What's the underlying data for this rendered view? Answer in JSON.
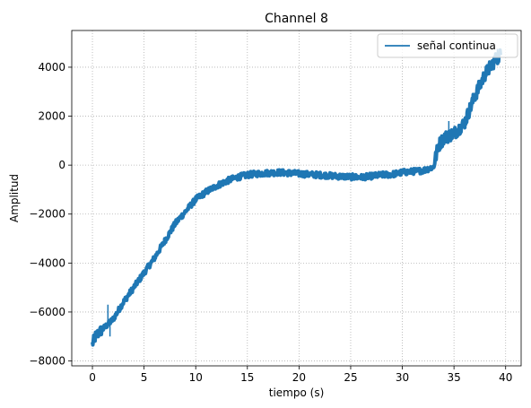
{
  "chart_data": {
    "type": "line",
    "title": "Channel 8",
    "xlabel": "tiempo (s)",
    "ylabel": "Amplitud",
    "xlim": [
      -2,
      41.5
    ],
    "ylim": [
      -8200,
      5500
    ],
    "xticks": [
      0,
      5,
      10,
      15,
      20,
      25,
      30,
      35,
      40
    ],
    "yticks": [
      -8000,
      -6000,
      -4000,
      -2000,
      0,
      2000,
      4000
    ],
    "xtick_labels": [
      "0",
      "5",
      "10",
      "15",
      "20",
      "25",
      "30",
      "35",
      "40"
    ],
    "ytick_labels": [
      "−8000",
      "−6000",
      "−4000",
      "−2000",
      "0",
      "2000",
      "4000"
    ],
    "grid": true,
    "legend_position": "top-right",
    "colors": {
      "series": "#1f77b4"
    },
    "series": [
      {
        "name": "señal continua",
        "x": [
          0,
          0.3,
          0.6,
          1,
          1.5,
          2,
          3,
          4,
          5,
          6,
          7,
          8,
          9,
          10,
          11,
          12,
          13,
          14,
          15,
          16,
          17,
          18,
          19,
          20,
          21,
          22,
          23,
          24,
          25,
          26,
          27,
          28,
          29,
          30,
          31,
          32,
          33,
          33.5,
          34,
          35,
          36,
          37,
          38,
          39,
          39.5
        ],
        "y": [
          -7300,
          -7000,
          -6850,
          -6700,
          -6500,
          -6300,
          -5600,
          -5000,
          -4400,
          -3800,
          -3100,
          -2400,
          -1900,
          -1400,
          -1100,
          -850,
          -650,
          -500,
          -400,
          -350,
          -320,
          -300,
          -320,
          -350,
          -380,
          -400,
          -430,
          -460,
          -480,
          -500,
          -450,
          -400,
          -380,
          -300,
          -260,
          -220,
          -80,
          800,
          1100,
          1300,
          1700,
          2800,
          3700,
          4300,
          4500
        ]
      }
    ],
    "annotations": [
      {
        "x": 1.5,
        "y": -5700
      },
      {
        "x": 1.7,
        "y": -7000
      },
      {
        "x": 34.5,
        "y": 1800
      },
      {
        "x": 39.2,
        "y": 4750
      }
    ]
  }
}
